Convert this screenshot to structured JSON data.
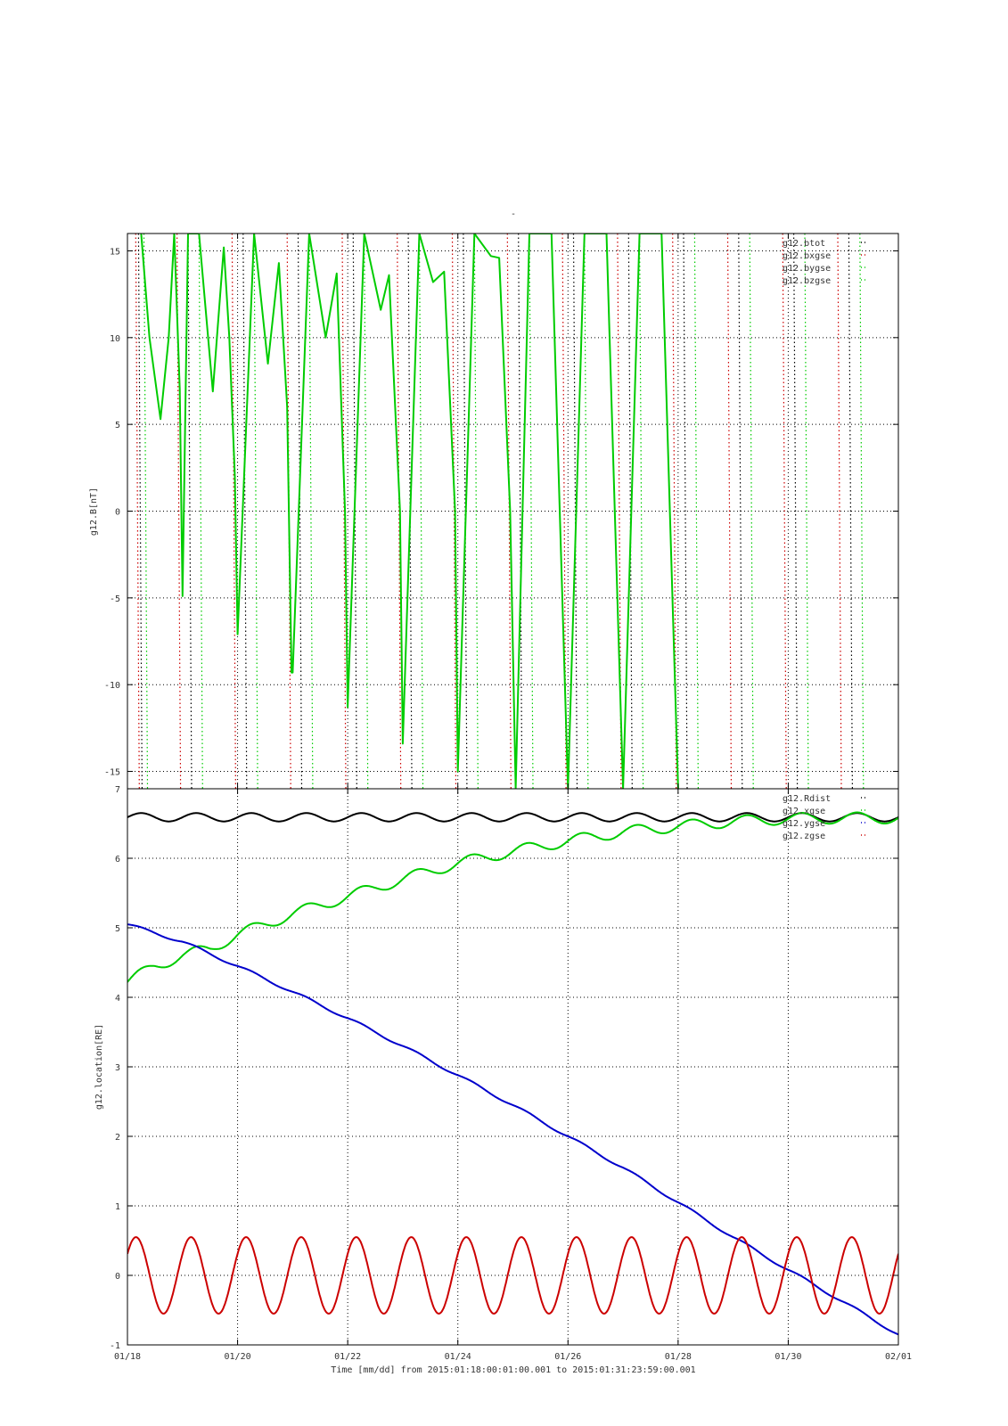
{
  "figure": {
    "title": "-",
    "xlabel": "Time [mm/dd]  from 2015:01:18:00:01:00.001  to  2015:01:31:23:59:00.001"
  },
  "colors": {
    "black": "#000000",
    "green": "#00cc00",
    "blue": "#0000cc",
    "red": "#cc0000",
    "grid": "#000000"
  },
  "chart_data": [
    {
      "type": "line",
      "title": "-",
      "ylabel": "g12.B[nT]",
      "xlabel": "",
      "x_unit": "day of January 2015",
      "xlim": [
        18,
        32
      ],
      "ylim": [
        -16,
        16
      ],
      "yticks": [
        -15,
        -10,
        -5,
        0,
        5,
        10,
        15
      ],
      "xticks": [
        18,
        20,
        22,
        24,
        26,
        28,
        30,
        32
      ],
      "grid": true,
      "legend_position": "top-right",
      "legend": [
        "g12.btot",
        "g12.bxgse",
        "g12.bygse",
        "g12.bzgse"
      ],
      "series": [
        {
          "name": "g12.btot",
          "color": "#000000",
          "style": "dotted",
          "x": [
            18.2,
            19.1,
            20.1,
            21.1,
            22.1,
            23.1,
            24.1,
            25.1,
            26.1,
            27.1,
            28.1,
            29.1,
            30.1,
            31.1
          ],
          "y": [
            16,
            16,
            16,
            16,
            16,
            16,
            16,
            16,
            16,
            16,
            16,
            16,
            16,
            16
          ]
        },
        {
          "name": "g12.bxgse",
          "color": "#cc0000",
          "style": "dotted",
          "x": [
            18.15,
            18.9,
            19.9,
            20.9,
            21.9,
            22.9,
            23.9,
            24.9,
            25.9,
            26.9,
            27.9,
            28.9,
            29.9,
            30.9
          ],
          "y": [
            -16,
            -16,
            -16,
            -16,
            -16,
            -16,
            -16,
            -16,
            -16,
            -16,
            -16,
            -16,
            -16,
            -16
          ]
        },
        {
          "name": "g12.bygse",
          "color": "#00cc00",
          "style": "dotted",
          "x": [
            18.3,
            19.3,
            20.3,
            21.3,
            22.3,
            23.3,
            24.3,
            25.3,
            26.3,
            27.3,
            28.3,
            29.3,
            30.3,
            31.3
          ],
          "y": [
            16,
            16,
            16,
            16,
            16,
            16,
            16,
            16,
            16,
            16,
            16,
            16,
            16,
            16
          ]
        },
        {
          "name": "g12.bzgse",
          "color": "#00cc00",
          "style": "solid",
          "x": [
            18.25,
            18.4,
            18.6,
            18.75,
            18.85,
            18.95,
            19.0,
            19.1,
            19.3,
            19.55,
            19.75,
            19.85,
            19.95,
            20.0,
            20.3,
            20.55,
            20.75,
            20.9,
            20.98,
            21.0,
            21.3,
            21.6,
            21.8,
            21.95,
            22.0,
            22.3,
            22.6,
            22.75,
            22.95,
            23.0,
            23.3,
            23.55,
            23.75,
            23.95,
            24.0,
            24.3,
            24.6,
            24.75,
            24.95,
            25.05,
            25.3,
            25.7,
            26.0,
            26.3,
            26.7,
            27.0,
            27.3,
            27.7,
            28.0
          ],
          "y": [
            16,
            10,
            5.3,
            10,
            16,
            7,
            -4.9,
            16,
            16,
            6.9,
            15.2,
            10,
            2,
            -7.1,
            16,
            8.5,
            14.3,
            6,
            -9.3,
            -9.3,
            16,
            10,
            13.7,
            0,
            -11.3,
            16,
            11.6,
            13.6,
            0,
            -13.4,
            16,
            13.2,
            13.8,
            0,
            -15,
            16,
            14.7,
            14.6,
            0,
            -16,
            16,
            16,
            -16,
            16,
            16,
            -16,
            16,
            16,
            -16
          ]
        }
      ]
    },
    {
      "type": "line",
      "title": "",
      "ylabel": "g12.location[RE]",
      "xlabel": "Time [mm/dd]  from 2015:01:18:00:01:00.001  to  2015:01:31:23:59:00.001",
      "x_unit": "day of January 2015",
      "xlim": [
        18,
        32
      ],
      "ylim": [
        -1,
        7
      ],
      "yticks": [
        -1,
        0,
        1,
        2,
        3,
        4,
        5,
        6,
        7
      ],
      "xticks": [
        18,
        20,
        22,
        24,
        26,
        28,
        30,
        32
      ],
      "xticklabels": [
        "01/18",
        "01/20",
        "01/22",
        "01/24",
        "01/26",
        "01/28",
        "01/30",
        "02/01"
      ],
      "grid": true,
      "legend_position": "top-right",
      "legend": [
        "g12.Rdist",
        "g12.xgse",
        "g12.ygse",
        "g12.zgse"
      ],
      "series": [
        {
          "name": "g12.Rdist",
          "color": "#000000",
          "style": "solid",
          "x": [
            18,
            20,
            22,
            24,
            26,
            28,
            30,
            32
          ],
          "y": [
            6.59,
            6.59,
            6.59,
            6.59,
            6.59,
            6.59,
            6.59,
            6.59
          ],
          "daily_oscillation_amplitude": 0.06
        },
        {
          "name": "g12.xgse",
          "color": "#00cc00",
          "style": "solid",
          "x": [
            18,
            18.5,
            19,
            19.5,
            20,
            21,
            22,
            23,
            24,
            25,
            26,
            27,
            28,
            29,
            30,
            31,
            32
          ],
          "y": [
            4.22,
            4.45,
            4.6,
            4.7,
            4.9,
            5.2,
            5.45,
            5.7,
            5.93,
            6.1,
            6.25,
            6.38,
            6.46,
            6.53,
            6.57,
            6.58,
            6.58
          ],
          "daily_oscillation_amplitude": 0.08
        },
        {
          "name": "g12.ygse",
          "color": "#0000cc",
          "style": "solid",
          "x": [
            18,
            19,
            20,
            21,
            22,
            23,
            24,
            25,
            26,
            27,
            28,
            29,
            30,
            31,
            32
          ],
          "y": [
            5.05,
            4.8,
            4.45,
            4.08,
            3.7,
            3.3,
            2.88,
            2.45,
            2.0,
            1.55,
            1.05,
            0.55,
            0.08,
            -0.38,
            -0.85
          ],
          "daily_oscillation_amplitude": 0.02
        },
        {
          "name": "g12.zgse",
          "color": "#cc0000",
          "style": "solid",
          "x": [
            18,
            32
          ],
          "y": [
            0,
            0
          ],
          "daily_oscillation_amplitude": 0.55,
          "period_days": 1
        }
      ]
    }
  ]
}
